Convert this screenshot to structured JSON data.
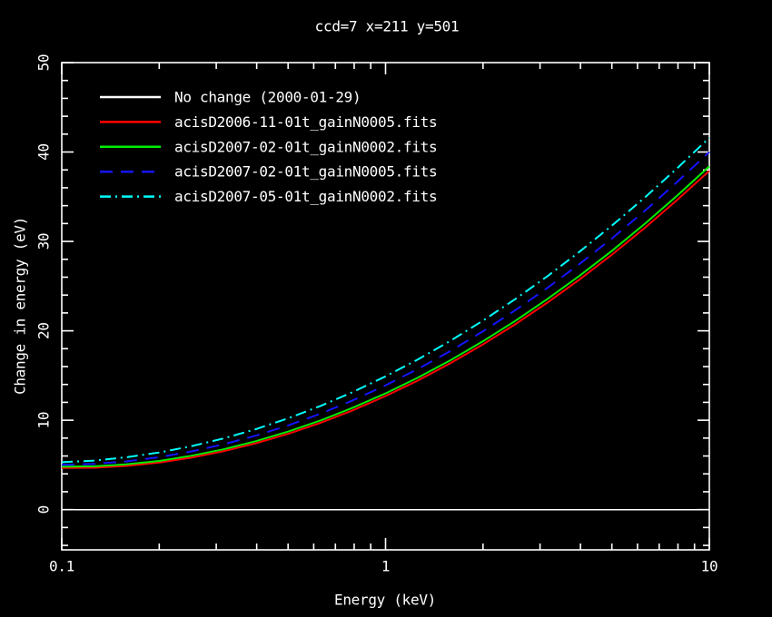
{
  "window": {
    "background": "#000000",
    "foreground": "#ffffff"
  },
  "chart": {
    "title": "ccd=7 x=211 y=501",
    "xlabel": "Energy (keV)",
    "ylabel": "Change in energy (eV)"
  },
  "chart_data": {
    "type": "line",
    "title": "ccd=7 x=211 y=501",
    "xlabel": "Energy (keV)",
    "ylabel": "Change in energy (eV)",
    "x_scale": "log",
    "xlim": [
      0.1,
      10
    ],
    "ylim": [
      -4.5,
      50
    ],
    "x_major_ticks": [
      0.1,
      1,
      10
    ],
    "x_major_labels": [
      "0.1",
      "1",
      "10"
    ],
    "y_major_ticks": [
      0,
      10,
      20,
      30,
      40,
      50
    ],
    "y_major_labels": [
      "0",
      "10",
      "20",
      "30",
      "40",
      "50"
    ],
    "y_minor_step": 2,
    "grid": false,
    "legend_position": "top-left",
    "x": [
      0.1,
      0.126,
      0.158,
      0.2,
      0.251,
      0.316,
      0.398,
      0.501,
      0.631,
      0.794,
      1,
      1.259,
      1.585,
      1.995,
      2.512,
      3.162,
      3.981,
      5.012,
      6.31,
      7.943,
      10
    ],
    "series": [
      {
        "name": "No change (2000-01-29)",
        "color": "#ffffff",
        "style": "solid",
        "values": [
          0,
          0,
          0,
          0,
          0,
          0,
          0,
          0,
          0,
          0,
          0,
          0,
          0,
          0,
          0,
          0,
          0,
          0,
          0,
          0,
          0
        ]
      },
      {
        "name": "acisD2006-11-01t_gainN0005.fits",
        "color": "#ff0000",
        "style": "solid",
        "values": [
          4.65,
          4.68,
          4.89,
          5.26,
          5.81,
          6.53,
          7.42,
          8.48,
          9.72,
          11.12,
          12.7,
          14.45,
          16.37,
          18.46,
          20.72,
          23.16,
          25.76,
          28.54,
          31.49,
          34.61,
          37.9
        ]
      },
      {
        "name": "acisD2007-02-01t_gainN0002.fits",
        "color": "#00ee00",
        "style": "solid",
        "values": [
          4.8,
          4.85,
          5.06,
          5.45,
          6.02,
          6.75,
          7.66,
          8.73,
          9.98,
          11.41,
          13.0,
          14.77,
          16.7,
          18.81,
          21.1,
          23.55,
          26.18,
          28.97,
          31.94,
          35.09,
          38.4
        ]
      },
      {
        "name": "acisD2007-02-01t_gainN0005.fits",
        "color": "#1414ff",
        "style": "dashed",
        "values": [
          5.0,
          5.12,
          5.4,
          5.86,
          6.5,
          7.3,
          8.28,
          9.42,
          10.74,
          12.24,
          13.9,
          15.74,
          17.74,
          19.92,
          22.28,
          24.8,
          27.5,
          30.36,
          33.4,
          36.62,
          40.0
        ]
      },
      {
        "name": "acisD2007-05-01t_gainN0002.fits",
        "color": "#00ffff",
        "style": "dash-dot",
        "values": [
          5.3,
          5.49,
          5.85,
          6.39,
          7.09,
          7.96,
          9.01,
          10.23,
          11.61,
          13.17,
          14.9,
          16.8,
          18.87,
          21.12,
          23.53,
          26.11,
          28.87,
          31.8,
          34.89,
          38.16,
          41.6
        ]
      }
    ]
  }
}
